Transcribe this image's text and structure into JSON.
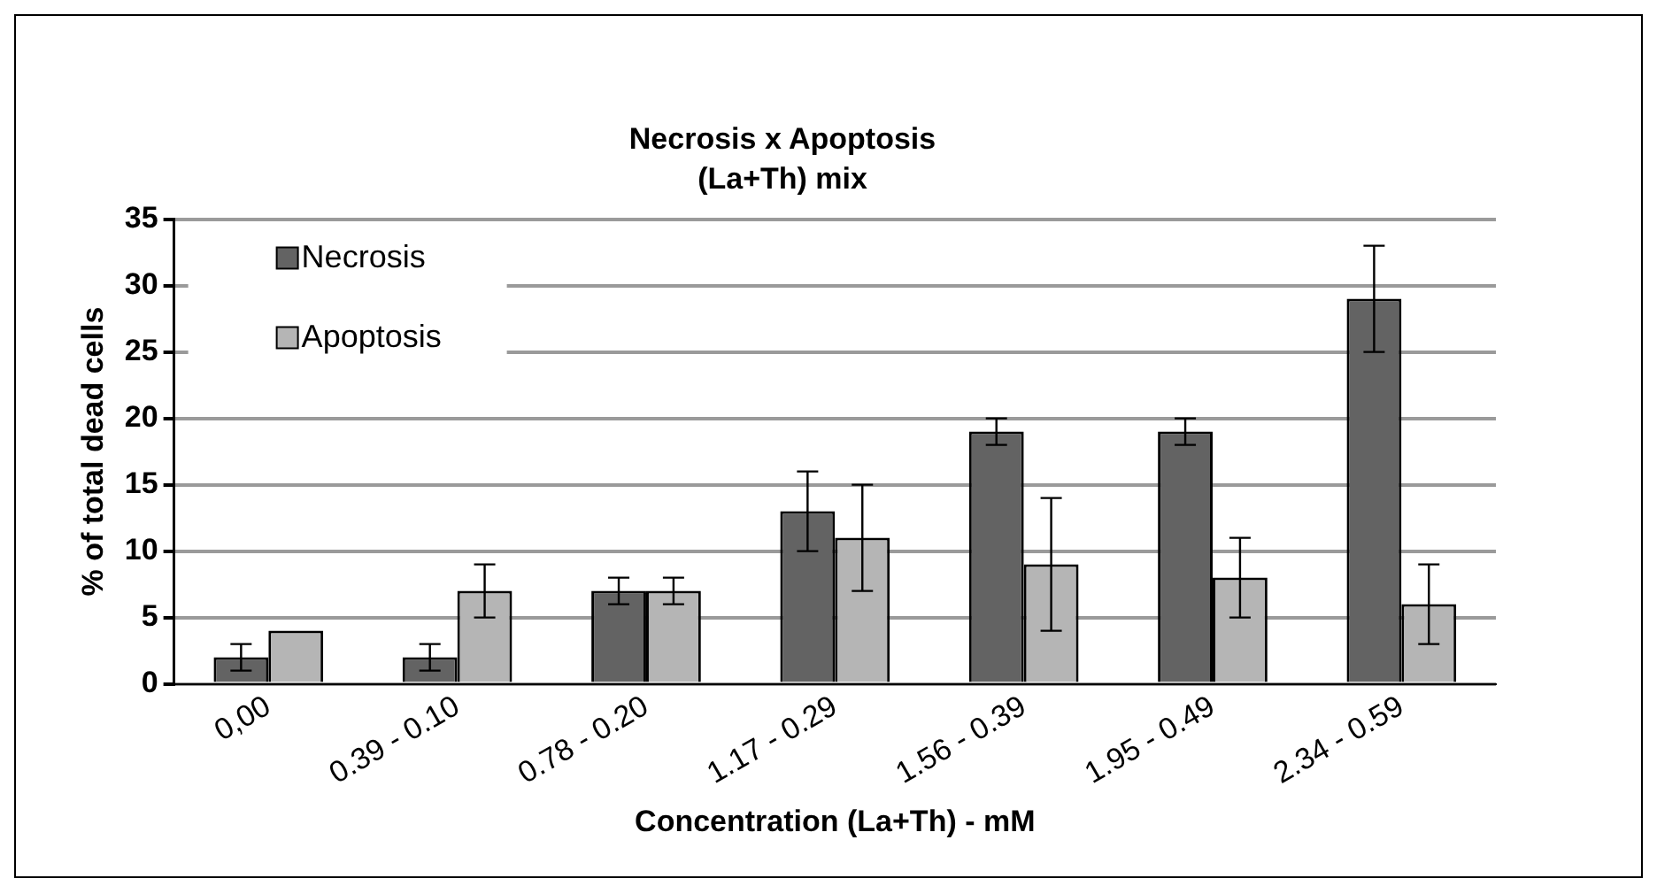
{
  "chart_data": {
    "type": "bar",
    "title": "Necrosis x Apoptosis",
    "subtitle": "(La+Th) mix",
    "xlabel": "Concentration (La+Th) - mM",
    "ylabel": "% of total dead cells",
    "categories": [
      "0,00",
      "0.39 - 0.10",
      "0.78 - 0.20",
      "1.17 - 0.29",
      "1.56 - 0.39",
      "1.95 - 0.49",
      "2.34 - 0.59"
    ],
    "series": [
      {
        "name": "Necrosis",
        "color": "#636363",
        "values": [
          2,
          2,
          7,
          13,
          19,
          19,
          29
        ],
        "errors": [
          1,
          1,
          1,
          3,
          1,
          1,
          4
        ]
      },
      {
        "name": "Apoptosis",
        "color": "#b5b5b5",
        "values": [
          4,
          7,
          7,
          11,
          9,
          8,
          6
        ],
        "errors": [
          null,
          2,
          1,
          4,
          5,
          3,
          3
        ]
      }
    ],
    "ylim": [
      0,
      35
    ],
    "yticks": [
      0,
      5,
      10,
      15,
      20,
      25,
      30,
      35
    ],
    "grid": "y",
    "legend": "top left"
  }
}
